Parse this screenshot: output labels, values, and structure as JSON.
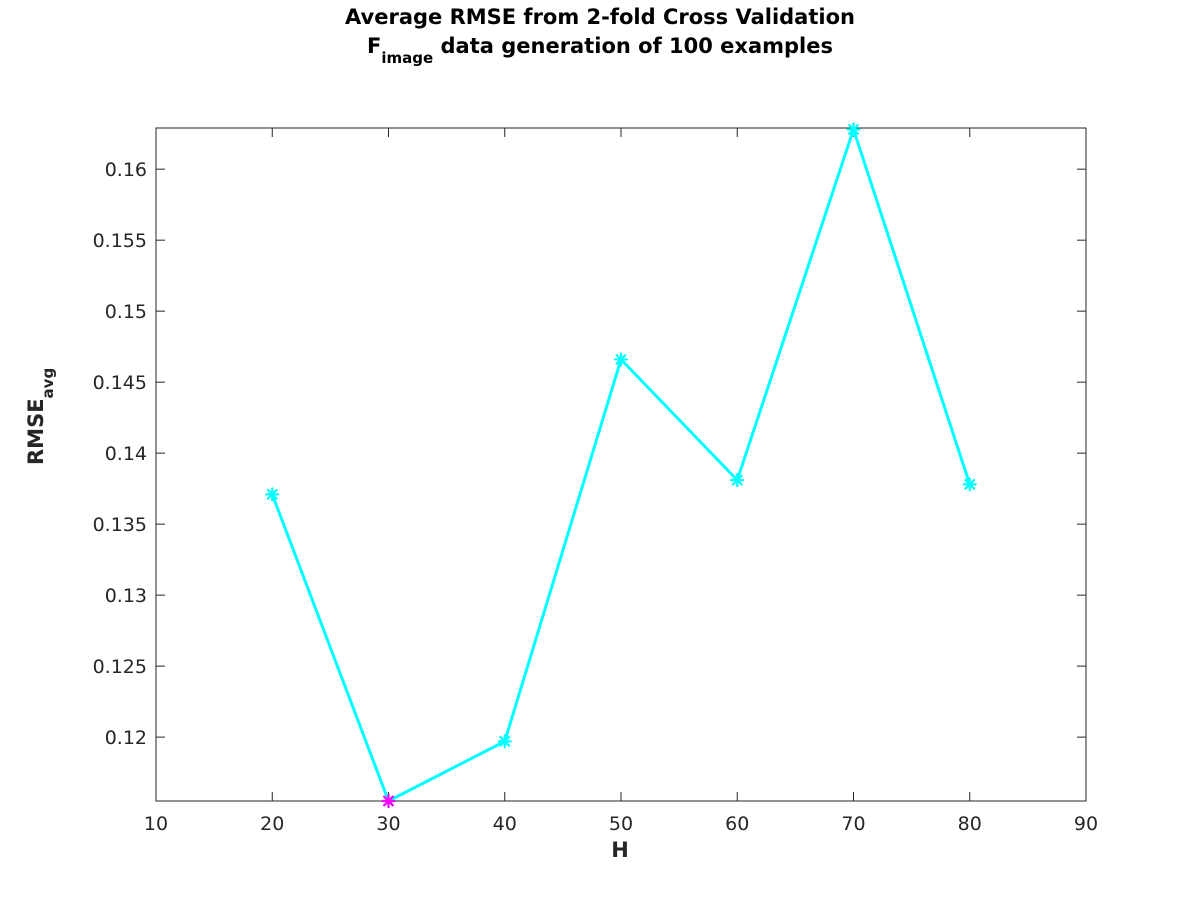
{
  "chart_data": {
    "type": "line",
    "title_line1": "Average RMSE from 2-fold Cross Validation",
    "title_line2_main": "F",
    "title_line2_sub": "image",
    "title_line2_rest": " data generation of 100 examples",
    "xlabel": "H",
    "ylabel_main": "RMSE",
    "ylabel_sub": "avg",
    "xlim": [
      10,
      90
    ],
    "ylim": [
      0.1155,
      0.1629
    ],
    "xticks": [
      10,
      20,
      30,
      40,
      50,
      60,
      70,
      80,
      90
    ],
    "xtick_labels": [
      "10",
      "20",
      "30",
      "40",
      "50",
      "60",
      "70",
      "80",
      "90"
    ],
    "yticks": [
      0.12,
      0.125,
      0.13,
      0.135,
      0.14,
      0.145,
      0.15,
      0.155,
      0.16
    ],
    "ytick_labels": [
      "0.12",
      "0.125",
      "0.13",
      "0.135",
      "0.14",
      "0.145",
      "0.15",
      "0.155",
      "0.16"
    ],
    "grid": true,
    "series": [
      {
        "x": [
          20,
          30,
          40,
          50,
          60,
          70,
          80
        ],
        "y": [
          0.1371,
          0.1155,
          0.1197,
          0.1466,
          0.1381,
          0.1628,
          0.1378
        ],
        "color": "#00ffff",
        "marker": "asterisk"
      }
    ],
    "highlight": {
      "x": 30,
      "y": 0.1155,
      "color": "#ff00ff",
      "marker": "asterisk"
    }
  }
}
